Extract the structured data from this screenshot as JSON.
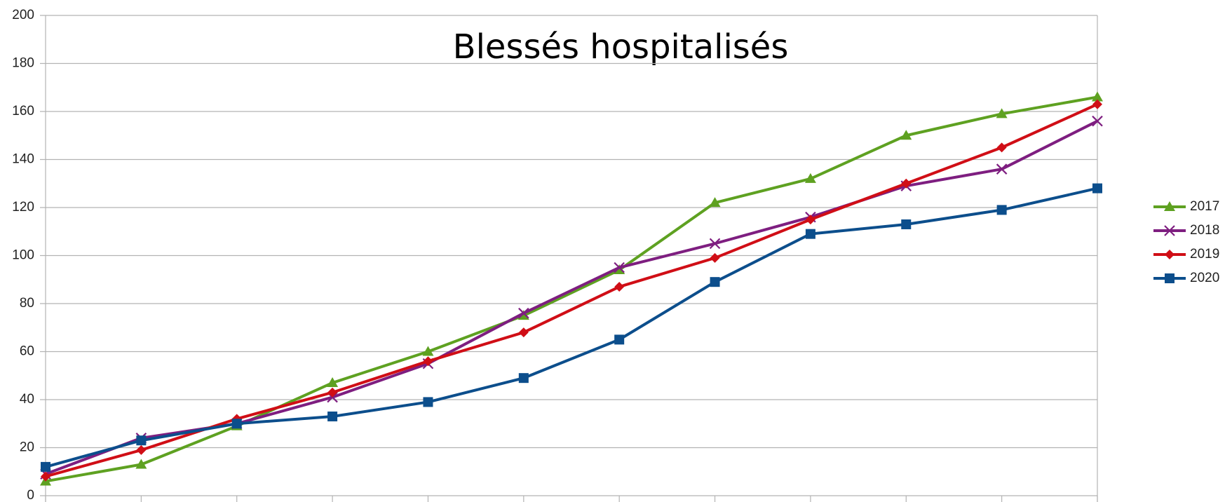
{
  "chart_data": {
    "type": "line",
    "title": "Blessés hospitalisés",
    "categories": [
      null,
      null,
      null,
      null,
      null,
      null,
      null,
      null,
      null,
      null,
      null,
      null
    ],
    "series": [
      {
        "name": "2017",
        "color": "#5ea121",
        "marker": "triangle",
        "values": [
          6,
          13,
          29,
          47,
          60,
          75,
          94,
          122,
          132,
          150,
          159,
          166
        ]
      },
      {
        "name": "2018",
        "color": "#7e1e80",
        "marker": "x",
        "values": [
          9,
          24,
          30,
          41,
          55,
          76,
          95,
          105,
          116,
          129,
          136,
          156
        ]
      },
      {
        "name": "2019",
        "color": "#d00e16",
        "marker": "diamond",
        "values": [
          8,
          19,
          32,
          43,
          56,
          68,
          87,
          99,
          115,
          130,
          145,
          163
        ]
      },
      {
        "name": "2020",
        "color": "#0c4e8c",
        "marker": "square",
        "values": [
          12,
          23,
          30,
          33,
          39,
          49,
          65,
          89,
          109,
          113,
          119,
          128
        ]
      }
    ],
    "ylim": [
      0,
      200
    ],
    "yticks": [
      0,
      20,
      40,
      60,
      80,
      100,
      120,
      140,
      160,
      180,
      200
    ],
    "grid": true,
    "legend": "right"
  }
}
